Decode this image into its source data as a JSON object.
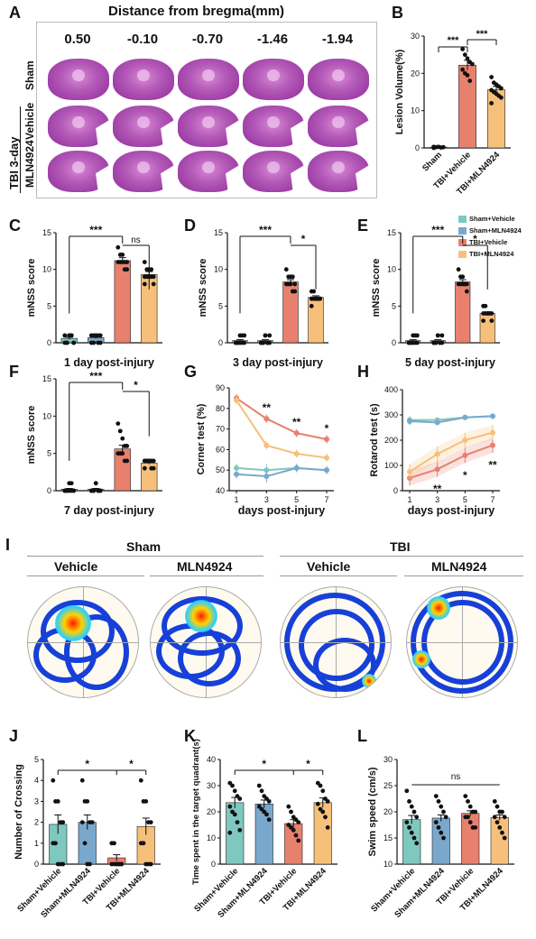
{
  "panel_a": {
    "letter": "A",
    "title": "Distance from bregma(mm)",
    "doses": [
      "0.50",
      "-0.10",
      "-0.70",
      "-1.46",
      "-1.94"
    ],
    "rows": [
      "Sham",
      "Vehicle",
      "MLN4924"
    ],
    "group_label": "TBI 3-day"
  },
  "panel_i": {
    "letter": "I",
    "groups": [
      "Sham",
      "TBI"
    ],
    "subs": [
      "Vehicle",
      "MLN4924",
      "Vehicle",
      "MLN4924"
    ]
  },
  "colors": {
    "sham_vehicle": "#7ec8c0",
    "sham_mln": "#7aa8cc",
    "tbi_vehicle": "#e8806e",
    "tbi_mln": "#f7c07a"
  },
  "legend": [
    "Sham+Vehicle",
    "Sham+MLN4924",
    "TBI+Vehicle",
    "TBI+MLN4924"
  ],
  "chart_data": [
    {
      "id": "B",
      "type": "bar",
      "ylabel": "Lesion Volume(%)",
      "categories": [
        "Sham",
        "TBI+Vehicle",
        "TBI+MLN4924"
      ],
      "values": [
        0.2,
        22.2,
        15.6
      ],
      "errors": [
        0.1,
        1.3,
        0.9
      ],
      "colors": [
        "#7ec8c0",
        "#e8806e",
        "#f7c07a"
      ],
      "ylim": [
        0,
        30
      ],
      "yticks": [
        0,
        10,
        20,
        30
      ],
      "points": [
        [
          0,
          0.2,
          0.3,
          0.1,
          0.2,
          0.3
        ],
        [
          26.5,
          25.0,
          24.0,
          23.0,
          22.5,
          21.0,
          20.0,
          19.5,
          18.0
        ],
        [
          19.0,
          17.5,
          17.0,
          16.5,
          16.0,
          15.5,
          15.0,
          14.5,
          14.0,
          13.5,
          12.0
        ]
      ],
      "sig": [
        "***",
        "***"
      ]
    },
    {
      "id": "C",
      "type": "bar",
      "ylabel": "mNSS score",
      "xlabel": "1 day post-injury",
      "values": [
        0.6,
        0.7,
        11.2,
        9.3
      ],
      "errors": [
        0.15,
        0.15,
        0.4,
        0.4
      ],
      "ylim": [
        0,
        15
      ],
      "yticks": [
        0,
        5,
        10,
        15
      ],
      "points": [
        [
          0,
          0,
          1,
          1,
          0,
          1,
          0,
          1,
          1,
          0
        ],
        [
          0,
          1,
          1,
          0,
          1,
          1,
          0,
          1,
          1,
          0
        ],
        [
          13,
          12,
          12,
          11,
          11,
          11,
          11,
          11,
          10,
          10
        ],
        [
          11,
          10,
          10,
          10,
          9,
          9,
          9,
          9,
          9,
          8,
          8
        ]
      ],
      "sig": [
        "***",
        "ns"
      ]
    },
    {
      "id": "D",
      "type": "bar",
      "ylabel": "mNSS score",
      "xlabel": "3 day post-injury",
      "values": [
        0.3,
        0.3,
        8.3,
        6.2
      ],
      "errors": [
        0.12,
        0.12,
        0.3,
        0.2
      ],
      "ylim": [
        0,
        15
      ],
      "yticks": [
        0,
        5,
        10,
        15
      ],
      "points": [
        [
          0,
          0,
          0,
          1,
          1,
          0,
          0,
          1,
          0,
          0
        ],
        [
          0,
          0,
          1,
          0,
          1,
          0,
          0,
          1,
          0,
          0
        ],
        [
          10,
          9,
          9,
          9,
          8,
          8,
          8,
          8,
          7,
          7
        ],
        [
          7,
          7,
          6,
          6,
          6,
          6,
          6,
          6,
          6,
          6,
          5
        ]
      ],
      "sig": [
        "***",
        "*"
      ]
    },
    {
      "id": "E",
      "type": "bar",
      "ylabel": "mNSS score",
      "xlabel": "5 day post-injury",
      "values": [
        0.3,
        0.3,
        8.3,
        4.0
      ],
      "errors": [
        0.12,
        0.12,
        0.3,
        0.2
      ],
      "ylim": [
        0,
        15
      ],
      "yticks": [
        0,
        5,
        10,
        15
      ],
      "points": [
        [
          0,
          0,
          0,
          1,
          1,
          0,
          0,
          1,
          0,
          0
        ],
        [
          0,
          0,
          1,
          0,
          1,
          0,
          0,
          1,
          0,
          0
        ],
        [
          10,
          9,
          9,
          8,
          8,
          8,
          8,
          8,
          8,
          7
        ],
        [
          5,
          5,
          4,
          4,
          4,
          4,
          4,
          4,
          4,
          3,
          3
        ]
      ],
      "sig": [
        "***",
        "*"
      ]
    },
    {
      "id": "F",
      "type": "bar",
      "ylabel": "mNSS score",
      "xlabel": "7 day post-injury",
      "values": [
        0.2,
        0.2,
        5.6,
        3.7
      ],
      "errors": [
        0.1,
        0.1,
        0.5,
        0.15
      ],
      "ylim": [
        0,
        15
      ],
      "yticks": [
        0,
        5,
        10,
        15
      ],
      "points": [
        [
          0,
          0,
          0,
          1,
          0,
          0,
          0,
          1,
          0,
          0
        ],
        [
          0,
          0,
          1,
          0,
          0,
          0,
          0,
          1,
          0,
          0
        ],
        [
          9,
          8,
          7,
          6,
          6,
          5,
          5,
          5,
          4,
          4
        ],
        [
          4,
          4,
          4,
          4,
          4,
          4,
          4,
          4,
          3,
          3,
          3
        ]
      ],
      "sig": [
        "***",
        "*"
      ]
    },
    {
      "id": "G",
      "type": "line",
      "ylabel": "Corner test (%)",
      "xlabel": "days post-injury",
      "x": [
        1,
        3,
        5,
        7
      ],
      "ylim": [
        40,
        90
      ],
      "yticks": [
        40,
        50,
        60,
        70,
        80,
        90
      ],
      "series": [
        {
          "name": "Sham+Vehicle",
          "values": [
            51,
            50,
            51,
            50
          ],
          "errors": [
            2,
            3,
            2,
            2
          ]
        },
        {
          "name": "Sham+MLN4924",
          "values": [
            48,
            47,
            51,
            50
          ],
          "errors": [
            2,
            3,
            2,
            2
          ]
        },
        {
          "name": "TBI+Vehicle",
          "values": [
            85,
            75,
            68,
            65
          ],
          "errors": [
            2,
            2,
            2,
            2
          ]
        },
        {
          "name": "TBI+MLN4924",
          "values": [
            84,
            62,
            58,
            56
          ],
          "errors": [
            2,
            2,
            2,
            2
          ]
        }
      ],
      "sig": [
        {
          "x": 3,
          "t": "**"
        },
        {
          "x": 5,
          "t": "**"
        },
        {
          "x": 7,
          "t": "*"
        }
      ]
    },
    {
      "id": "H",
      "type": "line",
      "ylabel": "Rotarod test (s)",
      "xlabel": "days post-injury",
      "x": [
        1,
        3,
        5,
        7
      ],
      "ylim": [
        0,
        400
      ],
      "yticks": [
        0,
        100,
        200,
        300,
        400
      ],
      "series": [
        {
          "name": "Sham+Vehicle",
          "values": [
            280,
            280,
            290,
            295
          ],
          "errors": [
            15,
            10,
            5,
            5
          ]
        },
        {
          "name": "Sham+MLN4924",
          "values": [
            275,
            270,
            290,
            295
          ],
          "errors": [
            15,
            10,
            5,
            5
          ]
        },
        {
          "name": "TBI+Vehicle",
          "values": [
            50,
            85,
            140,
            180
          ],
          "errors": [
            30,
            30,
            30,
            30
          ]
        },
        {
          "name": "TBI+MLN4924",
          "values": [
            75,
            145,
            200,
            230
          ],
          "errors": [
            30,
            30,
            30,
            30
          ]
        }
      ],
      "sig": [
        {
          "x": 3,
          "t": "**"
        },
        {
          "x": 5,
          "t": "*"
        },
        {
          "x": 7,
          "t": "**"
        }
      ]
    },
    {
      "id": "J",
      "type": "bar",
      "ylabel": "Number of Crossing",
      "categories": [
        "Sham+Vehicle",
        "Sham+MLN4924",
        "TBI+Vehicle",
        "TBI+MLN4924"
      ],
      "values": [
        1.9,
        2.0,
        0.3,
        1.8
      ],
      "errors": [
        0.45,
        0.35,
        0.15,
        0.4
      ],
      "ylim": [
        0,
        5
      ],
      "yticks": [
        0,
        1,
        2,
        3,
        4,
        5
      ],
      "points": [
        [
          4,
          3,
          3,
          2,
          2,
          1,
          1,
          0,
          0,
          0
        ],
        [
          4,
          3,
          3,
          2,
          2,
          2,
          1,
          0,
          0
        ],
        [
          1,
          1,
          0,
          0,
          0,
          0,
          0,
          0,
          0,
          0
        ],
        [
          4,
          3,
          3,
          2,
          2,
          1,
          1,
          0,
          0,
          0
        ]
      ],
      "sig": [
        "*",
        "*"
      ]
    },
    {
      "id": "K",
      "type": "bar",
      "ylabel": "Time spent in the target quadrant(s)",
      "categories": [
        "Sham+Vehicle",
        "Sham+MLN4924",
        "TBI+Vehicle",
        "TBI+MLN4924"
      ],
      "values": [
        23.5,
        23.0,
        15.5,
        23.5
      ],
      "errors": [
        2.0,
        1.5,
        1.5,
        1.8
      ],
      "ylim": [
        0,
        40
      ],
      "yticks": [
        0,
        10,
        20,
        30,
        40
      ],
      "points": [
        [
          31,
          30,
          28,
          26,
          25,
          22,
          20,
          19,
          16,
          13,
          12
        ],
        [
          30,
          28,
          26,
          25,
          24,
          22,
          21,
          20,
          19,
          17
        ],
        [
          22,
          20,
          18,
          17,
          16,
          15,
          14,
          13,
          11,
          9
        ],
        [
          31,
          30,
          28,
          25,
          24,
          23,
          21,
          20,
          18,
          14
        ]
      ],
      "sig": [
        "*",
        "*"
      ]
    },
    {
      "id": "L",
      "type": "bar",
      "ylabel": "Swim speed (cm/s)",
      "categories": [
        "Sham+Vehicle",
        "Sham+MLN4924",
        "TBI+Vehicle",
        "TBI+MLN4924"
      ],
      "values": [
        18.5,
        18.8,
        19.7,
        18.9
      ],
      "errors": [
        0.8,
        0.6,
        0.5,
        0.5
      ],
      "ylim": [
        10,
        30
      ],
      "yticks": [
        10,
        15,
        20,
        25,
        30
      ],
      "points": [
        [
          24,
          22,
          21,
          20,
          19,
          18,
          17,
          16,
          15,
          14
        ],
        [
          23,
          22,
          21,
          20,
          19,
          18,
          17,
          16,
          15
        ],
        [
          23,
          22,
          21,
          20,
          20,
          19,
          19,
          18,
          17,
          17
        ],
        [
          22,
          21,
          20,
          20,
          19,
          19,
          18,
          17,
          16,
          15
        ]
      ],
      "sig": [
        "ns"
      ]
    }
  ]
}
